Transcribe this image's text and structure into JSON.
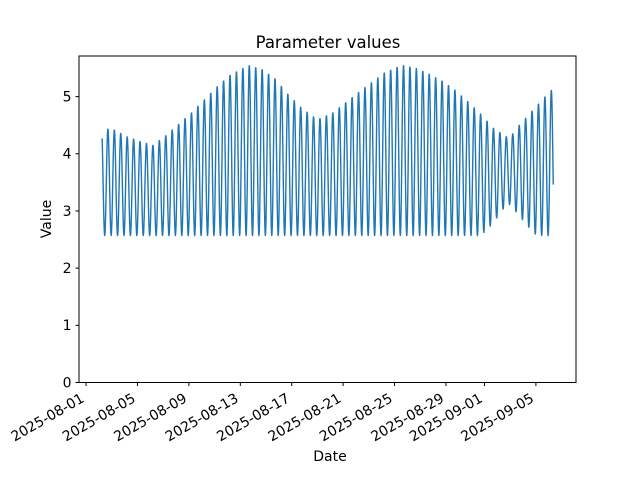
{
  "chart_data": {
    "type": "line",
    "title": "Parameter values",
    "xlabel": "Date",
    "ylabel": "Value",
    "series_color": "#1f77b4",
    "background_color": "#ffffff",
    "grid": false,
    "legend": false,
    "x_tick_labels": [
      "2025-08-01",
      "2025-08-05",
      "2025-08-09",
      "2025-08-13",
      "2025-08-17",
      "2025-08-21",
      "2025-08-25",
      "2025-08-29",
      "2025-09-01",
      "2025-09-05"
    ],
    "x_tick_day_offsets": [
      0,
      4,
      8,
      12,
      16,
      20,
      24,
      28,
      31,
      35
    ],
    "x_range_days": [
      -0.55,
      38.12
    ],
    "y_ticks": [
      0,
      1,
      2,
      3,
      4,
      5
    ],
    "y_range": [
      0,
      5.71
    ],
    "series": {
      "name": "parameter-values",
      "start_day_offset": 1.25,
      "end_day_offset": 36.36,
      "oscillation_period_days": 0.5,
      "peak_day_offset": 1.7,
      "first_tick_date": "2025-08-01",
      "upper_envelope_points": [
        [
          1.25,
          4.45
        ],
        [
          2.2,
          4.42
        ],
        [
          3.2,
          4.3
        ],
        [
          4.2,
          4.22
        ],
        [
          5.2,
          4.15
        ],
        [
          6.2,
          4.32
        ],
        [
          7.2,
          4.52
        ],
        [
          8.2,
          4.72
        ],
        [
          9.2,
          4.95
        ],
        [
          10.2,
          5.18
        ],
        [
          11.2,
          5.38
        ],
        [
          12.2,
          5.5
        ],
        [
          12.7,
          5.55
        ],
        [
          13.7,
          5.48
        ],
        [
          14.7,
          5.32
        ],
        [
          15.7,
          5.05
        ],
        [
          16.7,
          4.82
        ],
        [
          17.7,
          4.65
        ],
        [
          18.2,
          4.62
        ],
        [
          19.2,
          4.72
        ],
        [
          20.2,
          4.9
        ],
        [
          21.2,
          5.08
        ],
        [
          22.2,
          5.25
        ],
        [
          23.2,
          5.42
        ],
        [
          24.2,
          5.52
        ],
        [
          24.7,
          5.55
        ],
        [
          25.7,
          5.5
        ],
        [
          26.7,
          5.4
        ],
        [
          27.7,
          5.28
        ],
        [
          28.7,
          5.12
        ],
        [
          29.7,
          4.92
        ],
        [
          30.7,
          4.7
        ],
        [
          31.7,
          4.45
        ],
        [
          32.7,
          4.3
        ],
        [
          33.2,
          4.35
        ],
        [
          33.7,
          4.5
        ],
        [
          34.7,
          4.75
        ],
        [
          35.7,
          5.0
        ],
        [
          36.36,
          5.15
        ]
      ],
      "lower_envelope_points": [
        [
          1.25,
          2.57
        ],
        [
          30.7,
          2.57
        ],
        [
          31.4,
          2.72
        ],
        [
          32.2,
          2.95
        ],
        [
          32.8,
          3.15
        ],
        [
          33.4,
          3.0
        ],
        [
          34.2,
          2.78
        ],
        [
          34.9,
          2.6
        ],
        [
          35.3,
          2.57
        ],
        [
          36.36,
          2.57
        ]
      ]
    }
  }
}
